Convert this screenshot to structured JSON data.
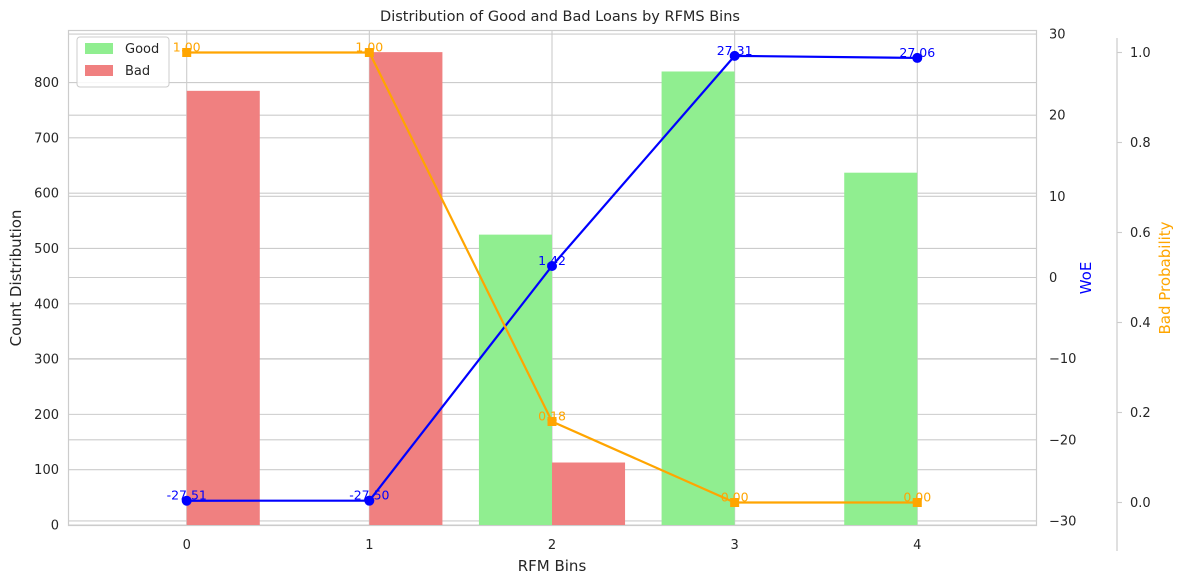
{
  "chart_data": {
    "type": "bar",
    "title": "Distribution of Good and Bad Loans by RFMS Bins",
    "xlabel": "RFM Bins",
    "ylabel": "Count Distribution",
    "ylabel_right": "WoE",
    "ylabel_right2": "Bad Probability",
    "categories": [
      "0",
      "1",
      "2",
      "3",
      "4"
    ],
    "ylim": [
      0,
      895
    ],
    "yticks": [
      "0",
      "100",
      "200",
      "300",
      "400",
      "500",
      "600",
      "700",
      "800"
    ],
    "y2lim": [
      -30.5,
      30.5
    ],
    "y2ticks": [
      "−30",
      "−20",
      "−10",
      "0",
      "10",
      "20",
      "30"
    ],
    "y3lim": [
      -0.05,
      1.05
    ],
    "y3ticks": [
      "0.0",
      "0.2",
      "0.4",
      "0.6",
      "0.8",
      "1.0"
    ],
    "legend_position": "top-left",
    "grid": true,
    "series": [
      {
        "name": "Good",
        "type": "bar",
        "axis": "left",
        "color": "#90ee90",
        "values": [
          0,
          0,
          525,
          820,
          637
        ]
      },
      {
        "name": "Bad",
        "type": "bar",
        "axis": "left",
        "color": "#f08080",
        "values": [
          785,
          855,
          113,
          0,
          0
        ]
      }
    ],
    "lines": [
      {
        "type": "line",
        "axis": "right",
        "color": "#0000ff",
        "marker": "circle",
        "values": [
          -27.51,
          -27.5,
          1.42,
          27.31,
          27.06
        ],
        "labels": [
          "-27.51",
          "-27.50",
          "1.42",
          "27.31",
          "27.06"
        ]
      },
      {
        "type": "line",
        "axis": "right2",
        "color": "#ffa500",
        "marker": "square",
        "values": [
          1.0,
          1.0,
          0.18,
          0.0,
          0.0
        ],
        "labels": [
          "1.00",
          "1.00",
          "0.18",
          "0.00",
          "0.00"
        ]
      }
    ]
  }
}
